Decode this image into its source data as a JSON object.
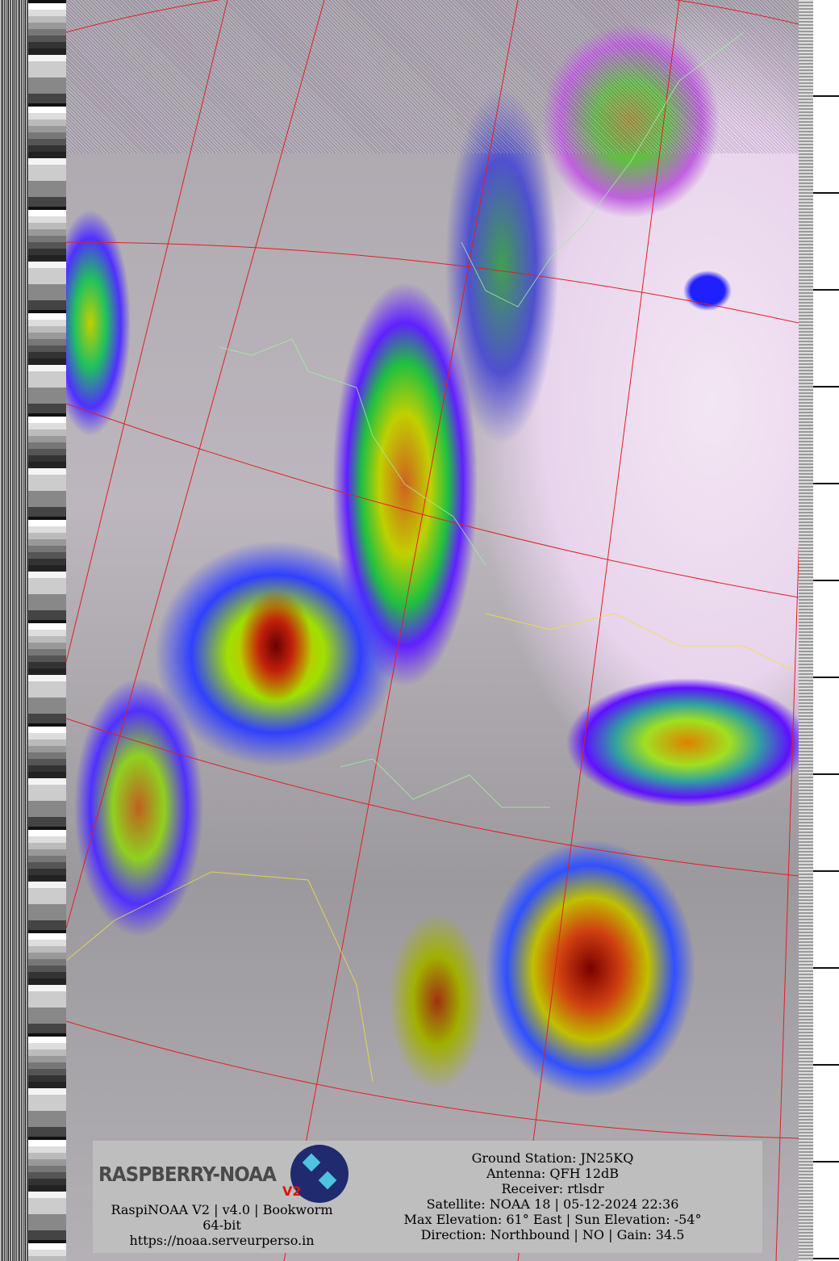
{
  "image": {
    "type": "NOAA APT satellite image",
    "colors": {
      "grid_lines": "#e02020",
      "borders": "#a0f0a0",
      "borders_south": "#f0e040",
      "footer_bg": "#bebebe"
    }
  },
  "footer": {
    "logo": {
      "text": "RASPBERRY-NOAA",
      "version_badge": "V2"
    },
    "left_lines": [
      "RaspiNOAA V2 | v4.0 | Bookworm 64-bit",
      "https://noaa.serveurperso.in"
    ],
    "right_lines": [
      "Ground Station: JN25KQ",
      "Antenna: QFH 12dB",
      "Receiver: rtlsdr",
      "Satellite: NOAA 18 | 05-12-2024 22:36",
      "Max Elevation: 61° East | Sun Elevation: -54°",
      "Direction: Northbound | NO | Gain: 34.5"
    ]
  }
}
